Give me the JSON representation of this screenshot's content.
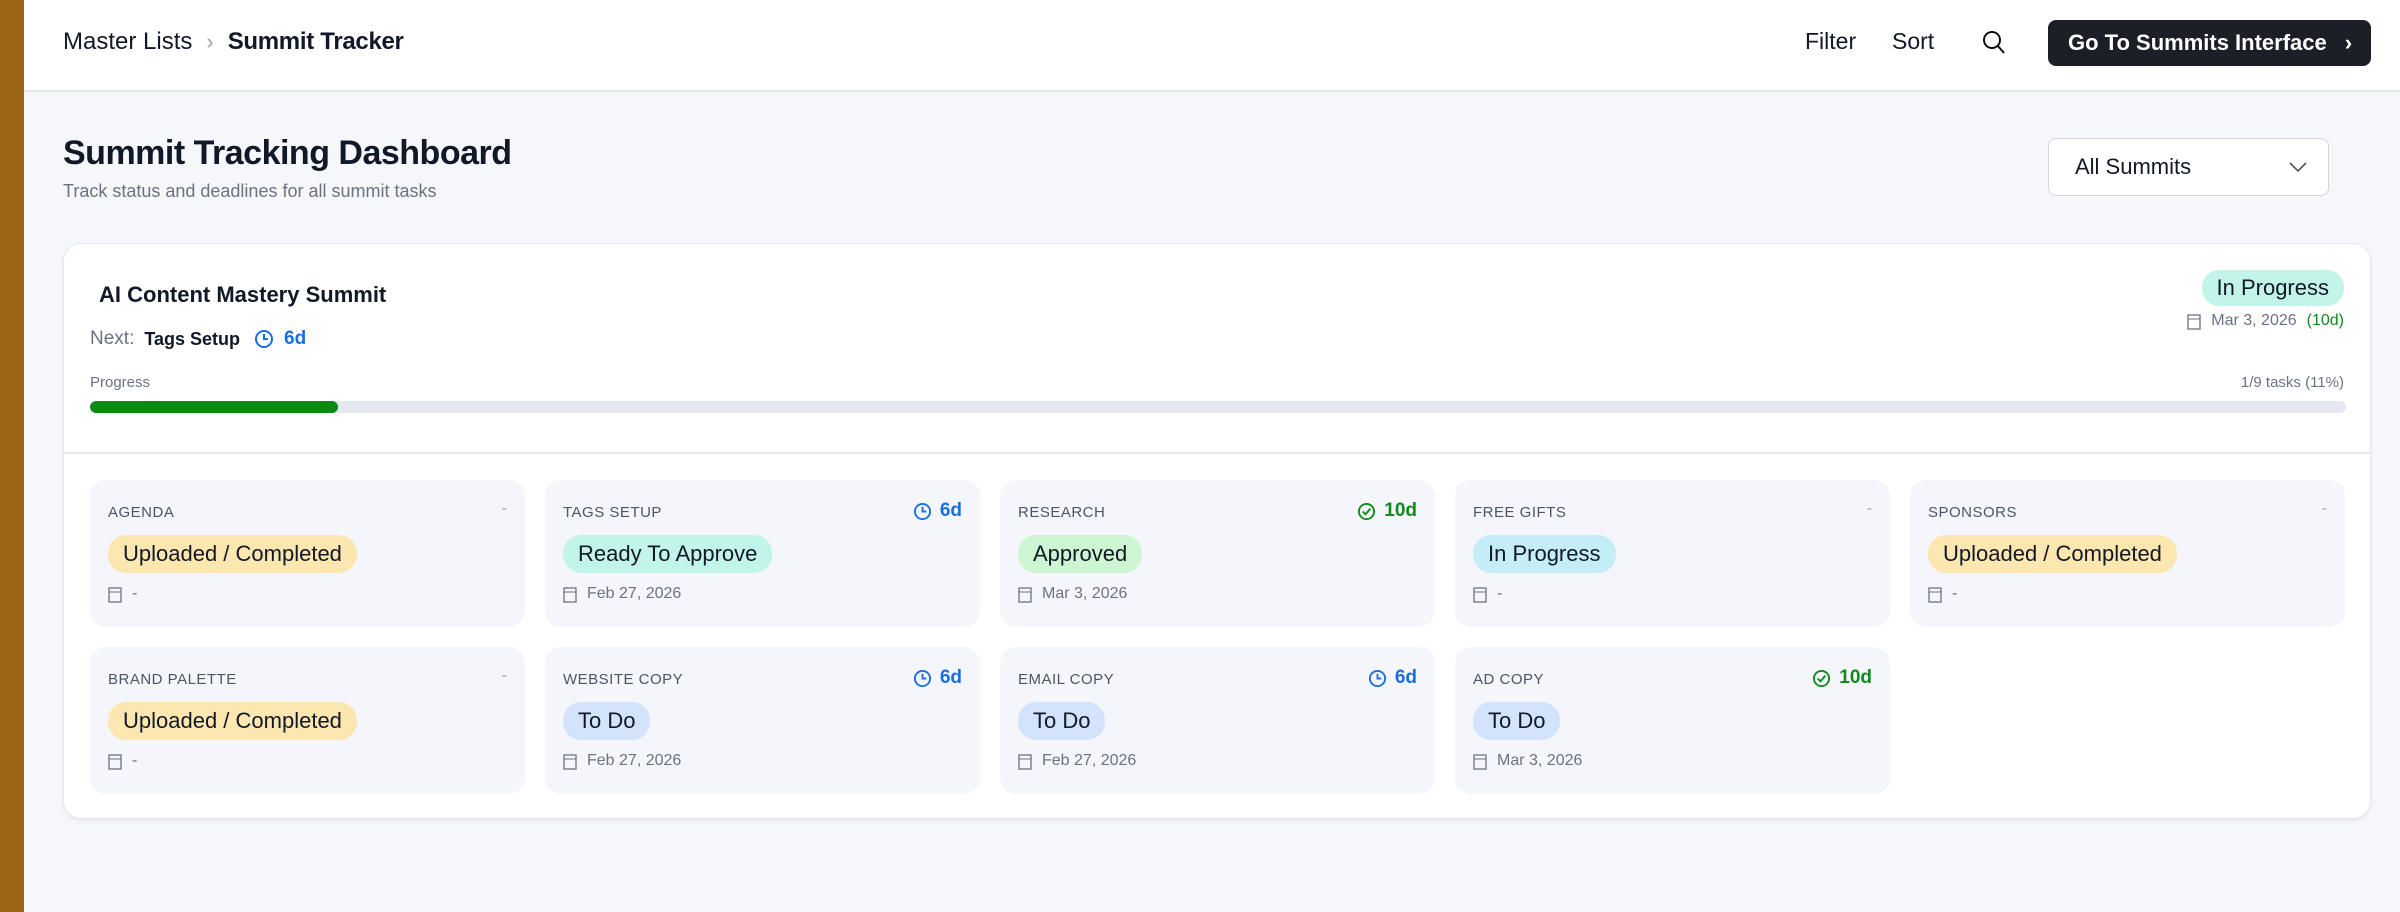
{
  "header": {
    "breadcrumb": [
      "Master Lists",
      "Summit Tracker"
    ],
    "filter": "Filter",
    "sort": "Sort",
    "go_button": "Go To Summits Interface"
  },
  "page": {
    "title": "Summit Tracking Dashboard",
    "subtitle": "Track status and deadlines for all summit tasks",
    "summit_select": "All Summits"
  },
  "summit": {
    "name": "AI Content Mastery Summit",
    "next_label": "Next:",
    "next_task": "Tags Setup",
    "next_due": "6d",
    "status": "In Progress",
    "date": "Mar 3, 2026",
    "date_remaining": "(10d)",
    "progress_label": "Progress",
    "progress_text": "1/9 tasks (11%)",
    "progress_fraction": 0.11,
    "tasks": [
      {
        "name": "AGENDA",
        "due": "-",
        "due_icon": "",
        "status": "Uploaded / Completed",
        "status_color": "#fde7b0",
        "date": "-"
      },
      {
        "name": "TAGS SETUP",
        "due": "6d",
        "due_icon": "clock-icon",
        "status": "Ready To Approve",
        "status_color": "#c2f4ea",
        "date": "Feb 27, 2026"
      },
      {
        "name": "RESEARCH",
        "due": "10d",
        "due_icon": "check-circle-icon",
        "status": "Approved",
        "status_color": "#cdf5d2",
        "date": "Mar 3, 2026"
      },
      {
        "name": "FREE GIFTS",
        "due": "-",
        "due_icon": "",
        "status": "In Progress",
        "status_color": "#c5edf8",
        "date": "-"
      },
      {
        "name": "SPONSORS",
        "due": "-",
        "due_icon": "",
        "status": "Uploaded / Completed",
        "status_color": "#fde7b0",
        "date": "-"
      },
      {
        "name": "BRAND PALETTE",
        "due": "-",
        "due_icon": "",
        "status": "Uploaded / Completed",
        "status_color": "#fde7b0",
        "date": "-"
      },
      {
        "name": "WEBSITE COPY",
        "due": "6d",
        "due_icon": "clock-icon",
        "status": "To Do",
        "status_color": "#d3e3fb",
        "date": "Feb 27, 2026"
      },
      {
        "name": "EMAIL COPY",
        "due": "6d",
        "due_icon": "clock-icon",
        "status": "To Do",
        "status_color": "#d3e3fb",
        "date": "Feb 27, 2026"
      },
      {
        "name": "AD COPY",
        "due": "10d",
        "due_icon": "check-circle-icon",
        "status": "To Do",
        "status_color": "#d3e3fb",
        "date": "Mar 3, 2026"
      }
    ]
  },
  "colors": {
    "accent_blue": "#1a6fe0",
    "accent_green": "#118a1c",
    "progress": "#0b8a13",
    "sidebar": "#9c6714"
  }
}
